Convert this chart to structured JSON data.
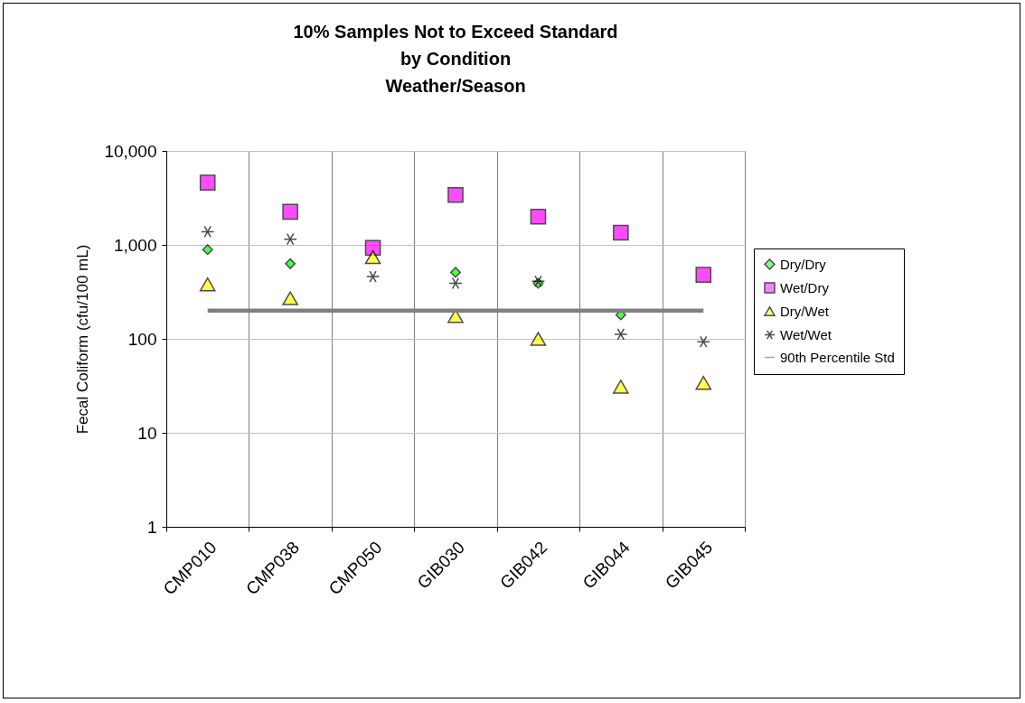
{
  "chart_data": {
    "type": "scatter",
    "title": "10% Samples Not to Exceed Standard\nby Condition\nWeather/Season",
    "ylabel": "Fecal Coliform  (cfu/100 mL)",
    "categories": [
      "CMP010",
      "CMP038",
      "CMP050",
      "GIB030",
      "GIB042",
      "GIB044",
      "GIB045"
    ],
    "log": "y",
    "ylim": [
      1,
      10000
    ],
    "yticks": [
      1,
      10,
      100,
      {
        "value": 1000,
        "label": "1,000"
      },
      {
        "value": 10000,
        "label": "10,000"
      }
    ],
    "grid": true,
    "legend": "right",
    "series": [
      {
        "name": "Dry/Dry",
        "color": "#00ff00",
        "marker": "diamond",
        "values": [
          890,
          630,
          null,
          510,
          390,
          180,
          null
        ]
      },
      {
        "name": "Wet/Dry",
        "color": "#ff00ff",
        "marker": "square",
        "values": [
          4600,
          2250,
          930,
          3400,
          2000,
          1350,
          480
        ]
      },
      {
        "name": "Dry/Wet",
        "color": "#ffff00",
        "marker": "triangle",
        "values": [
          380,
          270,
          740,
          175,
          100,
          31,
          34
        ]
      },
      {
        "name": "Wet/Wet",
        "color": "#000000",
        "marker": "cross",
        "values": [
          1380,
          1150,
          460,
          390,
          410,
          112,
          93
        ]
      },
      {
        "name": "90th Percentile Std",
        "type": "line",
        "color": "#808080",
        "marker": "none",
        "line_style": "solid",
        "values": [
          200,
          200,
          200,
          200,
          200,
          200,
          200
        ]
      }
    ]
  }
}
